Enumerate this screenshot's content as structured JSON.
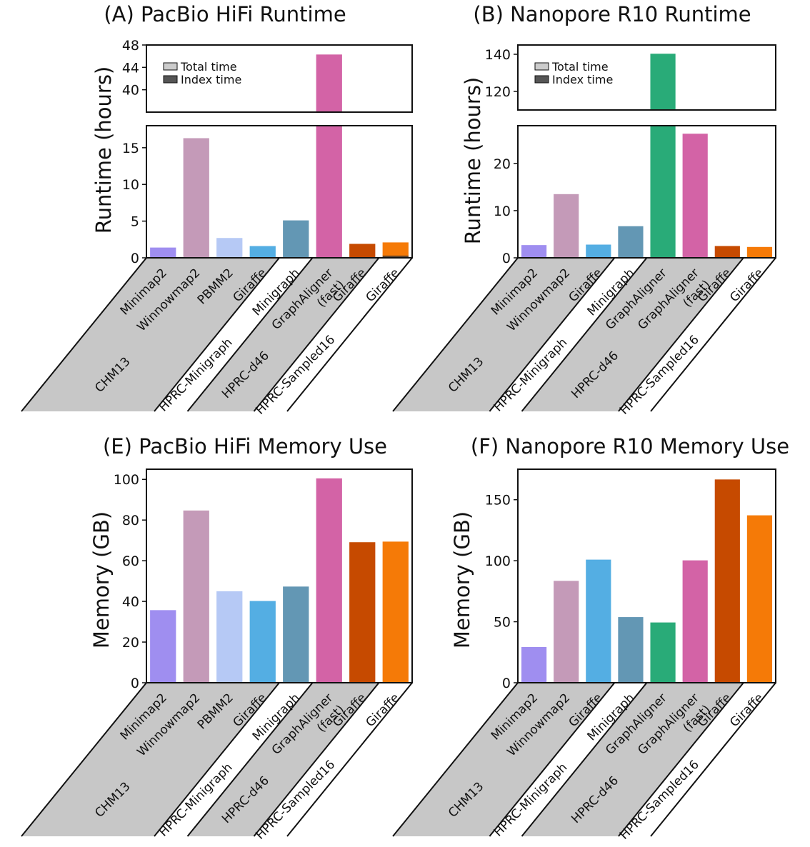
{
  "colors": {
    "Minimap2": "#9f8ef0",
    "Winnowmap2": "#c49ab8",
    "PBMM2": "#b6c9f5",
    "Giraffe-CHM13": "#54aee3",
    "Minigraph": "#6397b4",
    "GraphAligner": "#29ab78",
    "GraphAligner (fast)": "#d363a6",
    "Giraffe-d46": "#c64a00",
    "Giraffe-Sampled16": "#f57a07",
    "group_shade": "#c7c7c7",
    "index": "#333333"
  },
  "legend": {
    "total": "Total time",
    "index": "Index time"
  },
  "chart_data": [
    {
      "id": "A",
      "type": "bar",
      "title": "(A) PacBio HiFi Runtime",
      "ylabel": "Runtime (hours)",
      "broken_axis": true,
      "ylim_lower": [
        0,
        18
      ],
      "yticks_lower": [
        0,
        5,
        10,
        15
      ],
      "ylim_upper": [
        36,
        48
      ],
      "yticks_upper": [
        40,
        44,
        48
      ],
      "categories": [
        "Minimap2",
        "Winnowmap2",
        "PBMM2",
        "Giraffe",
        "Minigraph",
        "GraphAligner\n(fast)",
        "Giraffe",
        "Giraffe"
      ],
      "color_keys": [
        "Minimap2",
        "Winnowmap2",
        "PBMM2",
        "Giraffe-CHM13",
        "Minigraph",
        "GraphAligner (fast)",
        "Giraffe-d46",
        "Giraffe-Sampled16"
      ],
      "values": [
        1.4,
        16.3,
        2.7,
        1.6,
        5.1,
        46.3,
        1.9,
        2.1
      ],
      "index_values": [
        0,
        0,
        0,
        0,
        0,
        0,
        0,
        0.3
      ],
      "groups": [
        {
          "label": "CHM13",
          "count": 4
        },
        {
          "label": "HPRC-Minigraph",
          "count": 1
        },
        {
          "label": "HPRC-d46",
          "count": 2
        },
        {
          "label": "HPRC-Sampled16",
          "count": 1
        }
      ]
    },
    {
      "id": "B",
      "type": "bar",
      "title": "(B) Nanopore R10 Runtime",
      "ylabel": "Runtime (hours)",
      "broken_axis": true,
      "ylim_lower": [
        0,
        28
      ],
      "yticks_lower": [
        0,
        10,
        20
      ],
      "ylim_upper": [
        110,
        145
      ],
      "yticks_upper": [
        120,
        140
      ],
      "categories": [
        "Minimap2",
        "Winnowmap2",
        "Giraffe",
        "Minigraph",
        "GraphAligner",
        "GraphAligner\n(fast)",
        "Giraffe",
        "Giraffe"
      ],
      "color_keys": [
        "Minimap2",
        "Winnowmap2",
        "Giraffe-CHM13",
        "Minigraph",
        "GraphAligner",
        "GraphAligner (fast)",
        "Giraffe-d46",
        "Giraffe-Sampled16"
      ],
      "values": [
        2.7,
        13.5,
        2.8,
        6.7,
        140.3,
        26.3,
        2.5,
        2.3
      ],
      "index_values": [
        0,
        0,
        0,
        0,
        0,
        0,
        0,
        0
      ],
      "groups": [
        {
          "label": "CHM13",
          "count": 3
        },
        {
          "label": "HPRC-Minigraph",
          "count": 1
        },
        {
          "label": "HPRC-d46",
          "count": 3
        },
        {
          "label": "HPRC-Sampled16",
          "count": 1
        }
      ]
    },
    {
      "id": "E",
      "type": "bar",
      "title": "(E) PacBio HiFi Memory Use",
      "ylabel": "Memory (GB)",
      "broken_axis": false,
      "ylim": [
        0,
        105
      ],
      "yticks": [
        0,
        20,
        40,
        60,
        80,
        100
      ],
      "categories": [
        "Minimap2",
        "Winnowmap2",
        "PBMM2",
        "Giraffe",
        "Minigraph",
        "GraphAligner\n(fast)",
        "Giraffe",
        "Giraffe"
      ],
      "color_keys": [
        "Minimap2",
        "Winnowmap2",
        "PBMM2",
        "Giraffe-CHM13",
        "Minigraph",
        "GraphAligner (fast)",
        "Giraffe-d46",
        "Giraffe-Sampled16"
      ],
      "values": [
        35.7,
        84.7,
        45.0,
        40.2,
        47.3,
        100.5,
        69.1,
        69.4
      ],
      "groups": [
        {
          "label": "CHM13",
          "count": 4
        },
        {
          "label": "HPRC-Minigraph",
          "count": 1
        },
        {
          "label": "HPRC-d46",
          "count": 2
        },
        {
          "label": "HPRC-Sampled16",
          "count": 1
        }
      ]
    },
    {
      "id": "F",
      "type": "bar",
      "title": "(F) Nanopore R10 Memory Use",
      "ylabel": "Memory (GB)",
      "broken_axis": false,
      "ylim": [
        0,
        175
      ],
      "yticks": [
        0,
        50,
        100,
        150
      ],
      "categories": [
        "Minimap2",
        "Winnowmap2",
        "Giraffe",
        "Minigraph",
        "GraphAligner",
        "GraphAligner\n(fast)",
        "Giraffe",
        "Giraffe"
      ],
      "color_keys": [
        "Minimap2",
        "Winnowmap2",
        "Giraffe-CHM13",
        "Minigraph",
        "GraphAligner",
        "GraphAligner (fast)",
        "Giraffe-d46",
        "Giraffe-Sampled16"
      ],
      "values": [
        29.3,
        83.5,
        100.9,
        53.8,
        49.4,
        100.3,
        166.6,
        137.2
      ],
      "groups": [
        {
          "label": "CHM13",
          "count": 3
        },
        {
          "label": "HPRC-Minigraph",
          "count": 1
        },
        {
          "label": "HPRC-d46",
          "count": 3
        },
        {
          "label": "HPRC-Sampled16",
          "count": 1
        }
      ]
    }
  ]
}
